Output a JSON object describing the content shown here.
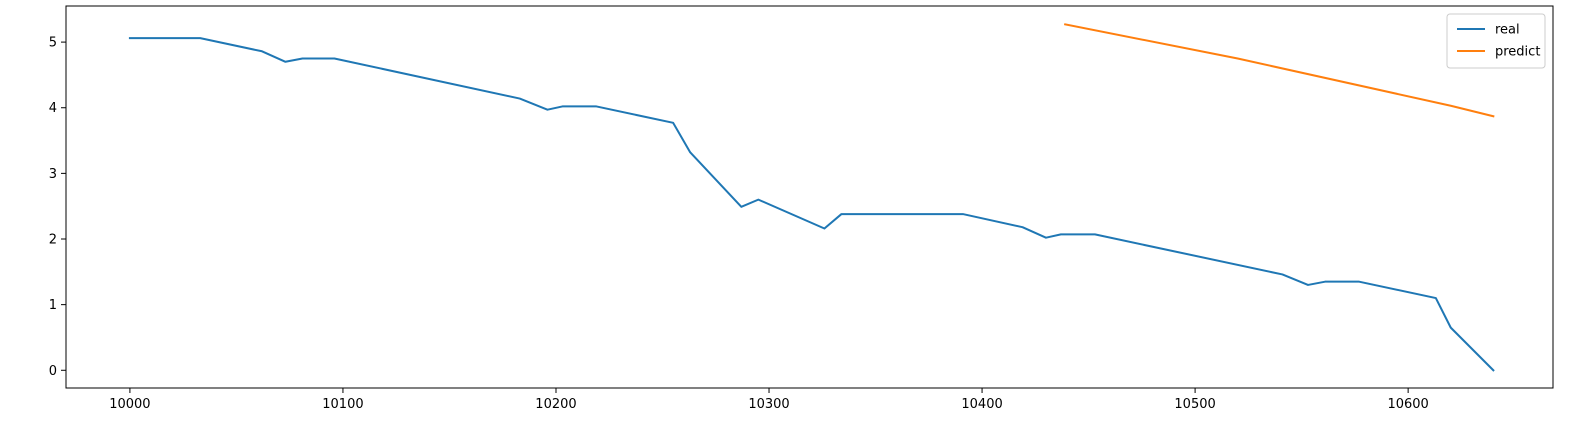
{
  "chart_data": {
    "type": "line",
    "title": "",
    "xlabel": "",
    "ylabel": "",
    "xlim": [
      9970,
      10668
    ],
    "ylim": [
      -0.27,
      5.55
    ],
    "x_ticks": [
      10000,
      10100,
      10200,
      10300,
      10400,
      10500,
      10600
    ],
    "y_ticks": [
      0,
      1,
      2,
      3,
      4,
      5
    ],
    "grid": false,
    "legend_position": "top-right",
    "series": [
      {
        "name": "real",
        "color": "#1f77b4",
        "points": [
          [
            10000,
            5.06
          ],
          [
            10033,
            5.06
          ],
          [
            10062,
            4.86
          ],
          [
            10073,
            4.7
          ],
          [
            10081,
            4.75
          ],
          [
            10096,
            4.75
          ],
          [
            10183,
            4.14
          ],
          [
            10196,
            3.97
          ],
          [
            10203,
            4.02
          ],
          [
            10219,
            4.02
          ],
          [
            10255,
            3.77
          ],
          [
            10263,
            3.32
          ],
          [
            10287,
            2.49
          ],
          [
            10295,
            2.6
          ],
          [
            10326,
            2.16
          ],
          [
            10334,
            2.38
          ],
          [
            10391,
            2.38
          ],
          [
            10419,
            2.18
          ],
          [
            10430,
            2.02
          ],
          [
            10437,
            2.07
          ],
          [
            10453,
            2.07
          ],
          [
            10541,
            1.46
          ],
          [
            10553,
            1.3
          ],
          [
            10561,
            1.35
          ],
          [
            10577,
            1.35
          ],
          [
            10613,
            1.1
          ],
          [
            10620,
            0.65
          ],
          [
            10640,
            0.0
          ]
        ]
      },
      {
        "name": "predict",
        "color": "#ff7f0e",
        "points": [
          [
            10439,
            5.27
          ],
          [
            10520,
            4.75
          ],
          [
            10620,
            4.03
          ],
          [
            10640,
            3.87
          ]
        ]
      }
    ]
  }
}
